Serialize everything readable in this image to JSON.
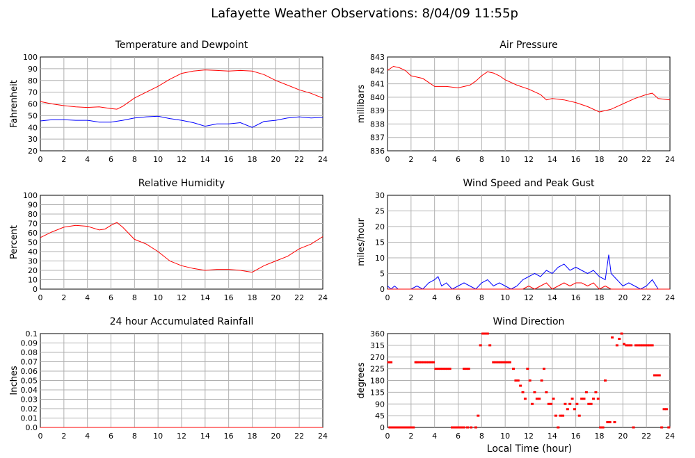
{
  "page": {
    "title": "Lafayette Weather Observations: 8/04/09 11:55p",
    "xlabel": "Local Time (hour)"
  },
  "chart_data": [
    {
      "id": "temp",
      "type": "line",
      "title": "Temperature and Dewpoint",
      "xlabel": "",
      "ylabel": "Fahrenheit",
      "xlim": [
        0,
        24
      ],
      "ylim": [
        20,
        100
      ],
      "xticks": [
        0,
        2,
        4,
        6,
        8,
        10,
        12,
        14,
        16,
        18,
        20,
        22,
        24
      ],
      "yticks": [
        20,
        30,
        40,
        50,
        60,
        70,
        80,
        90,
        100
      ],
      "grid": true,
      "series": [
        {
          "color": "#ff0000",
          "x": [
            0,
            1,
            2,
            3,
            4,
            5,
            6,
            6.5,
            7,
            8,
            9,
            10,
            11,
            12,
            13,
            14,
            15,
            16,
            17,
            18,
            19,
            20,
            21,
            22,
            23,
            24
          ],
          "values": [
            62,
            60,
            58.5,
            57.5,
            57,
            57.5,
            56,
            55.5,
            58,
            65,
            70,
            75,
            81,
            86,
            88,
            89,
            88.5,
            88,
            88.5,
            88,
            85,
            80,
            76,
            72,
            69,
            65
          ]
        },
        {
          "color": "#0000ff",
          "x": [
            0,
            1,
            2,
            3,
            4,
            5,
            6,
            7,
            8,
            9,
            10,
            11,
            12,
            13,
            14,
            15,
            16,
            17,
            18,
            19,
            20,
            21,
            22,
            23,
            24
          ],
          "values": [
            45.5,
            46.5,
            46.5,
            46,
            46,
            44.5,
            44.5,
            46,
            48,
            49,
            49.5,
            47.5,
            46,
            44,
            41,
            43,
            43,
            44,
            40,
            45,
            46,
            48,
            49,
            48,
            48.5
          ]
        }
      ]
    },
    {
      "id": "press",
      "type": "line",
      "title": "Air Pressure",
      "xlabel": "",
      "ylabel": "millibars",
      "xlim": [
        0,
        24
      ],
      "ylim": [
        836,
        843
      ],
      "xticks": [
        0,
        2,
        4,
        6,
        8,
        10,
        12,
        14,
        16,
        18,
        20,
        22,
        24
      ],
      "yticks": [
        836,
        837,
        838,
        839,
        840,
        841,
        842,
        843
      ],
      "grid": true,
      "series": [
        {
          "color": "#ff0000",
          "x": [
            0,
            0.5,
            1,
            1.5,
            2,
            3,
            4,
            5,
            6,
            7,
            7.5,
            8,
            8.5,
            9,
            9.5,
            10,
            11,
            12,
            13,
            13.5,
            14,
            15,
            16,
            17,
            18,
            18.5,
            19,
            20,
            21,
            22,
            22.5,
            23,
            24
          ],
          "values": [
            842,
            842.3,
            842.2,
            842,
            841.6,
            841.4,
            840.8,
            840.8,
            840.7,
            840.9,
            841.2,
            841.6,
            841.9,
            841.8,
            841.6,
            841.3,
            840.9,
            840.6,
            840.2,
            839.8,
            839.9,
            839.8,
            839.6,
            839.3,
            838.9,
            839,
            839.1,
            839.5,
            839.9,
            840.2,
            840.3,
            839.9,
            839.8
          ]
        }
      ]
    },
    {
      "id": "rh",
      "type": "line",
      "title": "Relative Humidity",
      "xlabel": "",
      "ylabel": "Percent",
      "xlim": [
        0,
        24
      ],
      "ylim": [
        0,
        100
      ],
      "xticks": [
        0,
        2,
        4,
        6,
        8,
        10,
        12,
        14,
        16,
        18,
        20,
        22,
        24
      ],
      "yticks": [
        0,
        10,
        20,
        30,
        40,
        50,
        60,
        70,
        80,
        90,
        100
      ],
      "grid": true,
      "series": [
        {
          "color": "#ff0000",
          "x": [
            0,
            1,
            2,
            3,
            4,
            5,
            5.5,
            6,
            6.5,
            7,
            8,
            9,
            10,
            11,
            12,
            13,
            14,
            15,
            16,
            17,
            18,
            19,
            20,
            21,
            22,
            23,
            24
          ],
          "values": [
            55,
            61,
            66,
            68,
            67,
            63,
            64,
            68,
            71,
            66,
            53,
            48,
            40,
            30,
            25,
            22,
            20,
            21,
            21,
            20,
            18,
            25,
            30,
            35,
            43,
            48,
            56
          ]
        }
      ]
    },
    {
      "id": "wind",
      "type": "line",
      "title": "Wind Speed and Peak Gust",
      "xlabel": "",
      "ylabel": "miles/hour",
      "xlim": [
        0,
        24
      ],
      "ylim": [
        0,
        30
      ],
      "xticks": [
        0,
        2,
        4,
        6,
        8,
        10,
        12,
        14,
        16,
        18,
        20,
        22,
        24
      ],
      "yticks": [
        0,
        5,
        10,
        15,
        20,
        25,
        30
      ],
      "grid": true,
      "series": [
        {
          "color": "#0000ff",
          "x": [
            0,
            0.3,
            0.6,
            0.9,
            1.2,
            2,
            2.5,
            3,
            3.5,
            4,
            4.3,
            4.6,
            5,
            5.5,
            6,
            6.5,
            7,
            7.5,
            8,
            8.5,
            9,
            9.5,
            10,
            10.5,
            11,
            11.5,
            12,
            12.5,
            13,
            13.5,
            14,
            14.5,
            15,
            15.5,
            16,
            16.5,
            17,
            17.5,
            18,
            18.5,
            18.8,
            19,
            19.5,
            20,
            20.5,
            21,
            21.5,
            22,
            22.5,
            23,
            24
          ],
          "values": [
            1,
            0,
            1,
            0,
            0,
            0,
            1,
            0,
            2,
            3,
            4,
            1,
            2,
            0,
            1,
            2,
            1,
            0,
            2,
            3,
            1,
            2,
            1,
            0,
            1,
            3,
            4,
            5,
            4,
            6,
            5,
            7,
            8,
            6,
            7,
            6,
            5,
            6,
            4,
            3,
            11,
            5,
            3,
            1,
            2,
            1,
            0,
            1,
            3,
            0,
            0
          ]
        },
        {
          "color": "#ff0000",
          "x": [
            0,
            10,
            11,
            11.5,
            12,
            12.5,
            13,
            13.5,
            14,
            14.5,
            15,
            15.5,
            16,
            16.5,
            17,
            17.5,
            18,
            18.5,
            19,
            20,
            24
          ],
          "values": [
            0,
            0,
            0,
            0,
            1,
            0,
            1,
            2,
            0,
            1,
            2,
            1,
            2,
            2,
            1,
            2,
            0,
            1,
            0,
            0,
            0
          ]
        }
      ]
    },
    {
      "id": "rain",
      "type": "line",
      "title": "24 hour Accumulated Rainfall",
      "xlabel": "",
      "ylabel": "Inches",
      "xlim": [
        0,
        24
      ],
      "ylim": [
        0,
        0.1
      ],
      "xticks": [
        0,
        2,
        4,
        6,
        8,
        10,
        12,
        14,
        16,
        18,
        20,
        22,
        24
      ],
      "yticks": [
        "0.0",
        "0.01",
        "0.02",
        "0.03",
        "0.04",
        "0.05",
        "0.06",
        "0.07",
        "0.08",
        "0.09",
        "0.1"
      ],
      "grid": true,
      "series": [
        {
          "color": "#ff0000",
          "x": [
            0,
            24
          ],
          "values": [
            0,
            0
          ]
        }
      ]
    },
    {
      "id": "dir",
      "type": "scatter",
      "title": "Wind Direction",
      "xlabel": "Local Time (hour)",
      "ylabel": "degrees",
      "xlim": [
        0,
        24
      ],
      "ylim": [
        0,
        360
      ],
      "xticks": [
        0,
        2,
        4,
        6,
        8,
        10,
        12,
        14,
        16,
        18,
        20,
        22,
        24
      ],
      "yticks": [
        0,
        45,
        90,
        135,
        180,
        225,
        270,
        315,
        360
      ],
      "grid": true,
      "series": [
        {
          "color": "#ff0000",
          "x": [
            0.1,
            0.3,
            0.5,
            0.7,
            0.2,
            0.4,
            0.6,
            0.8,
            1.0,
            1.2,
            1.4,
            1.6,
            1.8,
            2.0,
            2.2,
            2.4,
            2.5,
            2.7,
            2.9,
            3.1,
            3.3,
            3.5,
            3.7,
            3.9,
            4.1,
            4.3,
            4.5,
            4.7,
            4.9,
            5.1,
            5.5,
            5.3,
            5.7,
            5.9,
            6.1,
            6.3,
            6.5,
            6.7,
            6.9,
            7.1,
            6.5,
            6.8,
            7.5,
            7.7,
            7.9,
            8.1,
            8.3,
            8.5,
            8.7,
            9.0,
            9.2,
            9.4,
            9.6,
            9.8,
            10.0,
            10.2,
            10.4,
            10.7,
            10.9,
            11.1,
            11.3,
            11.5,
            11.7,
            11.9,
            12.1,
            12.3,
            12.5,
            12.7,
            12.9,
            13.1,
            13.3,
            13.5,
            13.7,
            13.9,
            14.1,
            14.3,
            14.5,
            14.7,
            14.9,
            15.1,
            15.3,
            15.5,
            15.7,
            15.9,
            16.1,
            16.3,
            16.5,
            16.7,
            16.9,
            17.1,
            17.3,
            17.5,
            17.7,
            17.9,
            18.1,
            18.3,
            18.5,
            18.7,
            18.9,
            19.1,
            19.3,
            19.5,
            19.7,
            19.9,
            20.1,
            20.3,
            20.5,
            20.7,
            20.9,
            21.1,
            21.3,
            21.5,
            21.7,
            21.9,
            22.1,
            22.3,
            22.5,
            22.7,
            22.9,
            23.1,
            23.3,
            23.5,
            23.7,
            23.9
          ],
          "values": [
            250,
            250,
            0,
            0,
            0,
            0,
            0,
            0,
            0,
            0,
            0,
            0,
            0,
            0,
            0,
            250,
            250,
            250,
            250,
            250,
            250,
            250,
            250,
            250,
            225,
            225,
            225,
            225,
            225,
            225,
            0,
            225,
            0,
            0,
            0,
            0,
            225,
            225,
            225,
            0,
            0,
            0,
            0,
            45,
            315,
            360,
            360,
            360,
            315,
            250,
            250,
            250,
            250,
            250,
            250,
            250,
            250,
            225,
            180,
            180,
            160,
            135,
            110,
            225,
            180,
            90,
            135,
            110,
            110,
            180,
            225,
            135,
            90,
            90,
            110,
            45,
            0,
            45,
            45,
            90,
            70,
            90,
            110,
            70,
            90,
            45,
            110,
            110,
            135,
            90,
            90,
            110,
            135,
            110,
            0,
            0,
            180,
            20,
            20,
            345,
            20,
            315,
            340,
            360,
            320,
            315,
            315,
            315,
            0,
            315,
            315,
            315,
            315,
            315,
            315,
            315,
            315,
            200,
            200,
            200,
            0,
            70,
            70,
            0
          ]
        }
      ]
    }
  ]
}
